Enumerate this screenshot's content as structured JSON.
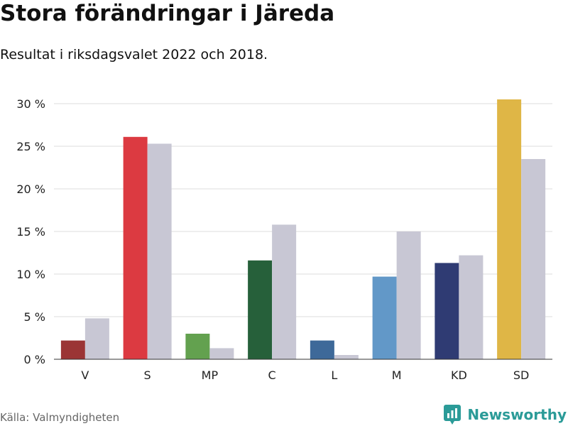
{
  "header": {
    "title": "Stora förändringar i Järeda",
    "subtitle": "Resultat i riksdagsvalet 2022 och 2018."
  },
  "footer": {
    "source": "Källa: Valmyndigheten",
    "brand": "Newsworthy",
    "brand_icon": "bar-chart-logo-icon",
    "brand_color": "#2b9b98"
  },
  "chart_data": {
    "type": "bar",
    "title": "Stora förändringar i Järeda",
    "subtitle": "Resultat i riksdagsvalet 2022 och 2018.",
    "xlabel": "",
    "ylabel": "",
    "ylim": [
      0,
      30
    ],
    "yticks": [
      0,
      5,
      10,
      15,
      20,
      25,
      30
    ],
    "ytick_labels": [
      "0 %",
      "5 %",
      "10 %",
      "15 %",
      "20 %",
      "25 %",
      "30 %"
    ],
    "grid": true,
    "legend": "none",
    "categories": [
      "V",
      "S",
      "MP",
      "C",
      "L",
      "M",
      "KD",
      "SD"
    ],
    "series": [
      {
        "values": [
          2.2,
          26.1,
          3.0,
          11.6,
          2.2,
          9.7,
          11.3,
          30.5
        ],
        "colors": [
          "#9b3535",
          "#dc3a41",
          "#63a14f",
          "#26603a",
          "#3e6999",
          "#6298c8",
          "#2f3b73",
          "#dfb646"
        ]
      },
      {
        "values": [
          4.8,
          25.3,
          1.3,
          15.8,
          0.5,
          15.0,
          12.2,
          23.5
        ],
        "color": "#c8c7d4"
      }
    ]
  }
}
